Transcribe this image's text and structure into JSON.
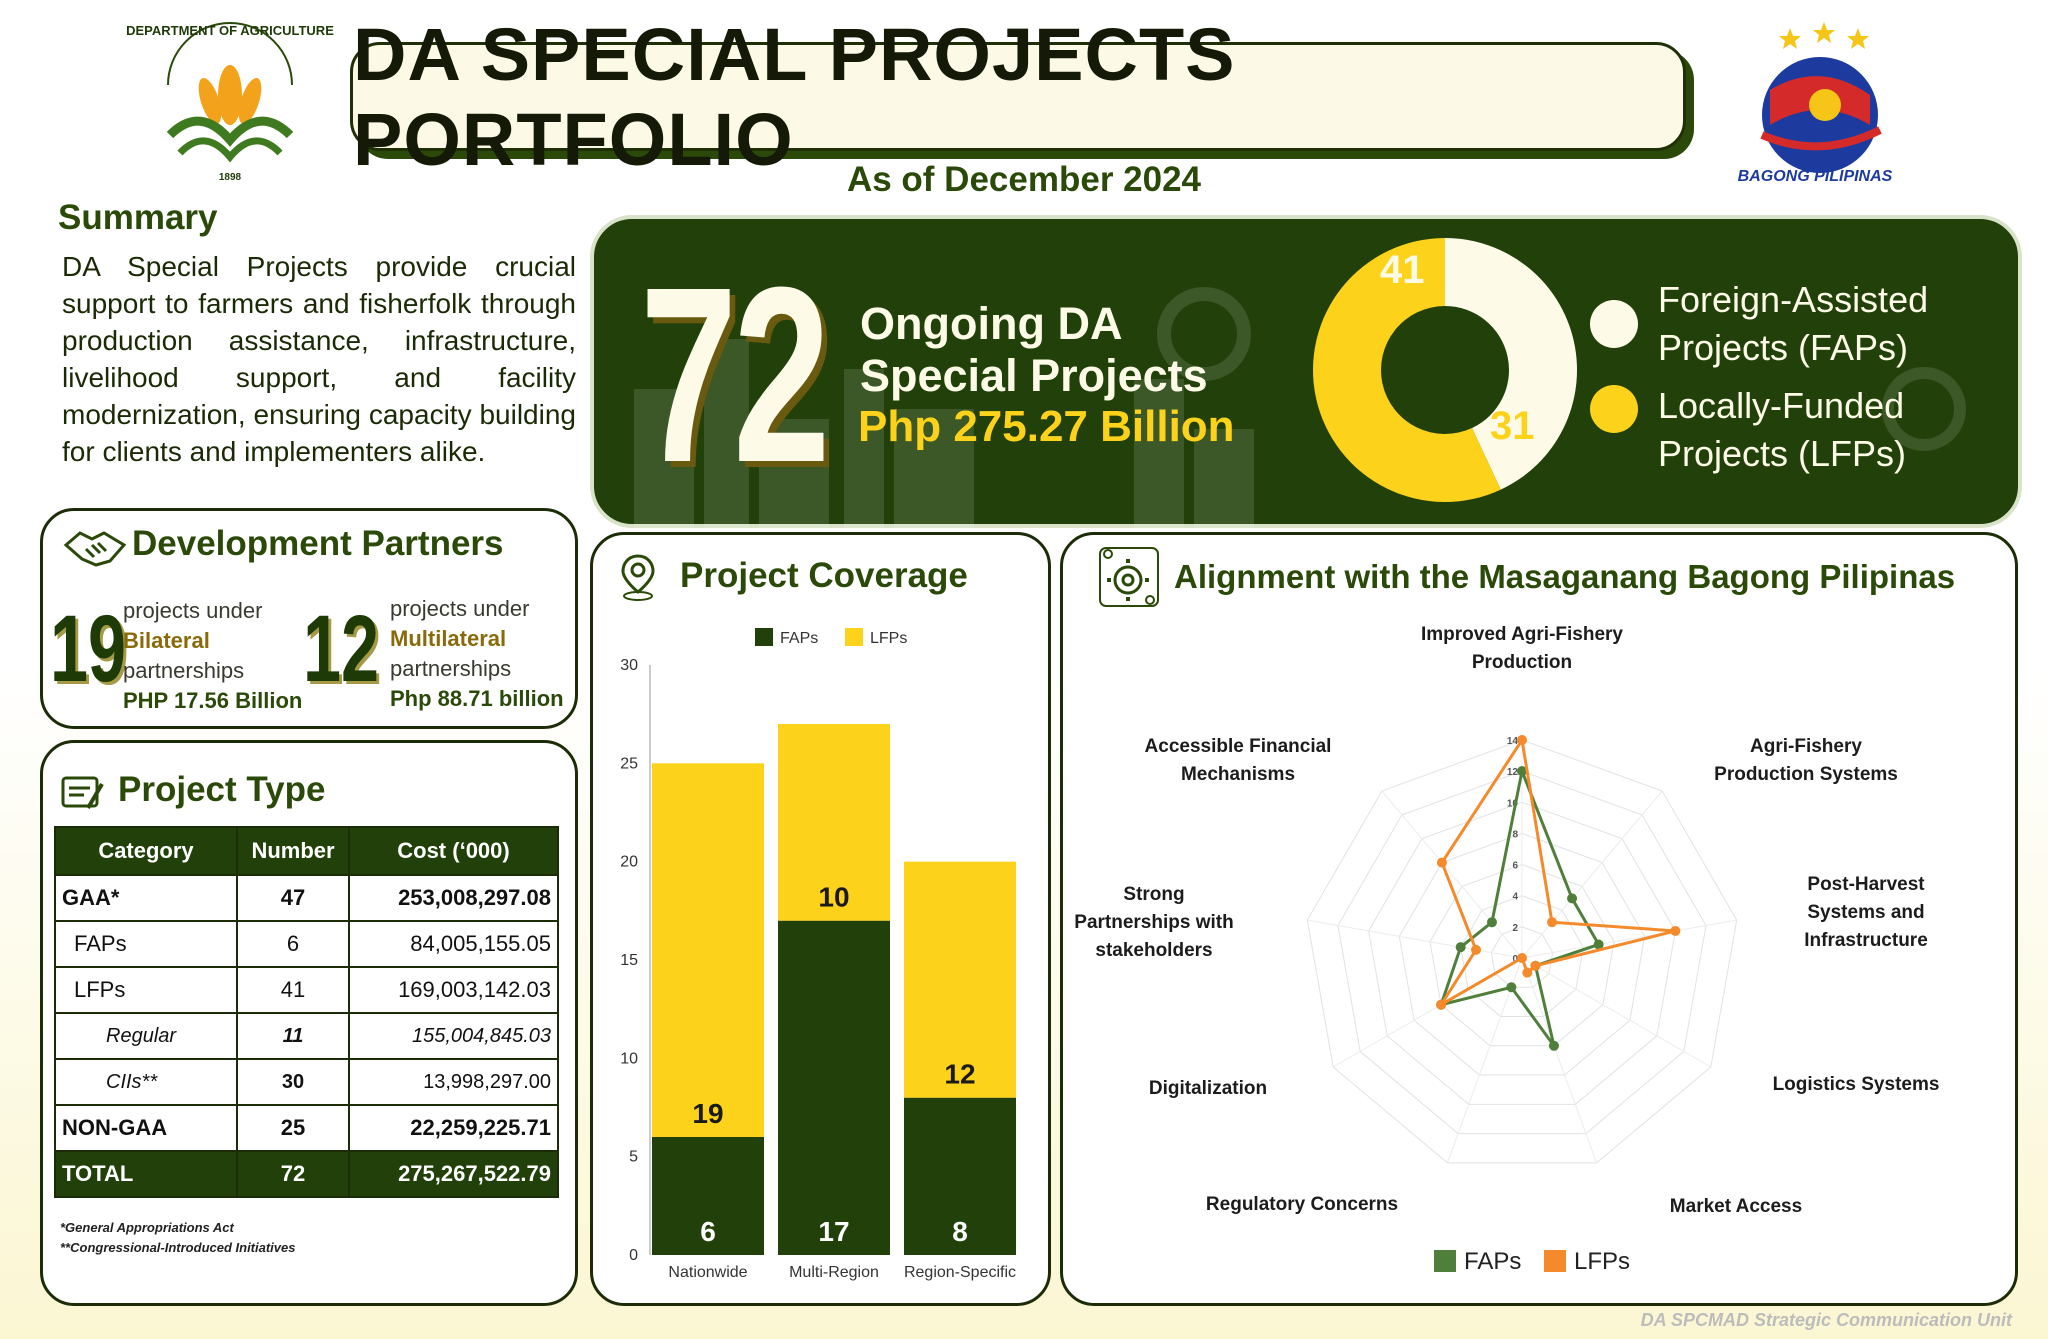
{
  "header": {
    "title": "DA SPECIAL PROJECTS PORTFOLIO",
    "subtitle": "As of December 2024",
    "da_logo_text": "DEPARTMENT OF AGRICULTURE 1898",
    "bp_logo_text": "BAGONG PILIPINAS"
  },
  "summary": {
    "heading": "Summary",
    "text": "DA Special Projects provide crucial support to farmers and fisherfolk through production assistance, infrastructure, livelihood support, and facility modernization, ensuring capacity building for clients and implementers alike."
  },
  "hero": {
    "count": "72",
    "line1": "Ongoing  DA",
    "line2": "Special Projects",
    "amount": "Php 275.27 Billion",
    "donut": [
      {
        "label": "Foreign-Assisted Projects (FAPs)",
        "line1": "Foreign-Assisted",
        "line2": "Projects (FAPs)",
        "value": 31,
        "color": "#fdfbe8"
      },
      {
        "label": "Locally-Funded Projects (LFPs)",
        "line1": "Locally-Funded",
        "line2": "Projects (LFPs)",
        "value": 41,
        "color": "#fcd21b"
      }
    ],
    "donut_label_lfp": "41",
    "donut_label_fap": "31"
  },
  "partners": {
    "title": "Development Partners",
    "bilateral": {
      "count": "19",
      "pre": "projects under",
      "type": "Bilateral",
      "post": "partnerships",
      "amount": "PHP 17.56 Billion"
    },
    "multilateral": {
      "count": "12",
      "pre": "projects under",
      "type": "Multilateral",
      "post": "partnerships",
      "amount": "Php 88.71 billion"
    }
  },
  "project_type": {
    "title": "Project Type",
    "headers": [
      "Category",
      "Number",
      "Cost (‘000)"
    ],
    "rows": [
      {
        "category": "GAA*",
        "number": "47",
        "cost": "253,008,297.08"
      },
      {
        "category": "FAPs",
        "number": "6",
        "cost": "84,005,155.05"
      },
      {
        "category": "LFPs",
        "number": "41",
        "cost": "169,003,142.03"
      },
      {
        "category": "Regular",
        "number": "11",
        "cost": "155,004,845.03"
      },
      {
        "category": "CIIs**",
        "number": "30",
        "cost": "13,998,297.00"
      },
      {
        "category": "NON-GAA",
        "number": "25",
        "cost": "22,259,225.71"
      },
      {
        "category": "TOTAL",
        "number": "72",
        "cost": "275,267,522.79"
      }
    ],
    "footnote1": "*General Appropriations Act",
    "footnote2": "**Congressional-Introduced Initiatives"
  },
  "coverage": {
    "title": "Project Coverage",
    "legend_faps": "FAPs",
    "legend_lfps": "LFPs"
  },
  "alignment": {
    "title": "Alignment with the Masaganang Bagong Pilipinas",
    "legend_faps": "FAPs",
    "legend_lfps": "LFPs",
    "labels": [
      "Improved Agri-Fishery Production",
      "Agri-Fishery Production Systems",
      "Post-Harvest Systems and Infrastructure",
      "Logistics Systems",
      "Market Access",
      "Regulatory Concerns",
      "Digitalization",
      "Strong Partnerships with stakeholders",
      "Accessible Financial Mechanisms"
    ]
  },
  "chart_data": [
    {
      "type": "bar",
      "stacked": true,
      "title": "Project Coverage",
      "categories": [
        "Nationwide",
        "Multi-Region",
        "Region-Specific"
      ],
      "series": [
        {
          "name": "FAPs",
          "values": [
            6,
            17,
            8
          ],
          "color": "#22410a"
        },
        {
          "name": "LFPs",
          "values": [
            19,
            10,
            12
          ],
          "color": "#fcd21b"
        }
      ],
      "ylim": [
        0,
        30
      ],
      "yticks": [
        0,
        5,
        10,
        15,
        20,
        25,
        30
      ],
      "legend": "top"
    },
    {
      "type": "radar",
      "title": "Alignment with the Masaganang Bagong Pilipinas",
      "categories": [
        "Improved Agri-Fishery Production",
        "Agri-Fishery Production Systems",
        "Post-Harvest Systems and Infrastructure",
        "Logistics Systems",
        "Market Access",
        "Regulatory Concerns",
        "Digitalization",
        "Strong Partnerships with stakeholders",
        "Accessible Financial Mechanisms"
      ],
      "series": [
        {
          "name": "FAPs",
          "values": [
            12,
            5,
            5,
            1,
            6,
            2,
            6,
            4,
            3
          ],
          "color": "#4f7f3a"
        },
        {
          "name": "LFPs",
          "values": [
            14,
            3,
            10,
            1,
            1,
            0,
            6,
            3,
            8
          ],
          "color": "#f58a2c"
        }
      ],
      "rlim": [
        0,
        14
      ],
      "rticks": [
        0,
        2,
        4,
        6,
        8,
        10,
        12,
        14
      ],
      "legend": "bottom"
    },
    {
      "type": "pie",
      "title": "72 Ongoing DA Special Projects",
      "categories": [
        "Foreign-Assisted Projects (FAPs)",
        "Locally-Funded Projects (LFPs)"
      ],
      "values": [
        31,
        41
      ]
    }
  ]
}
